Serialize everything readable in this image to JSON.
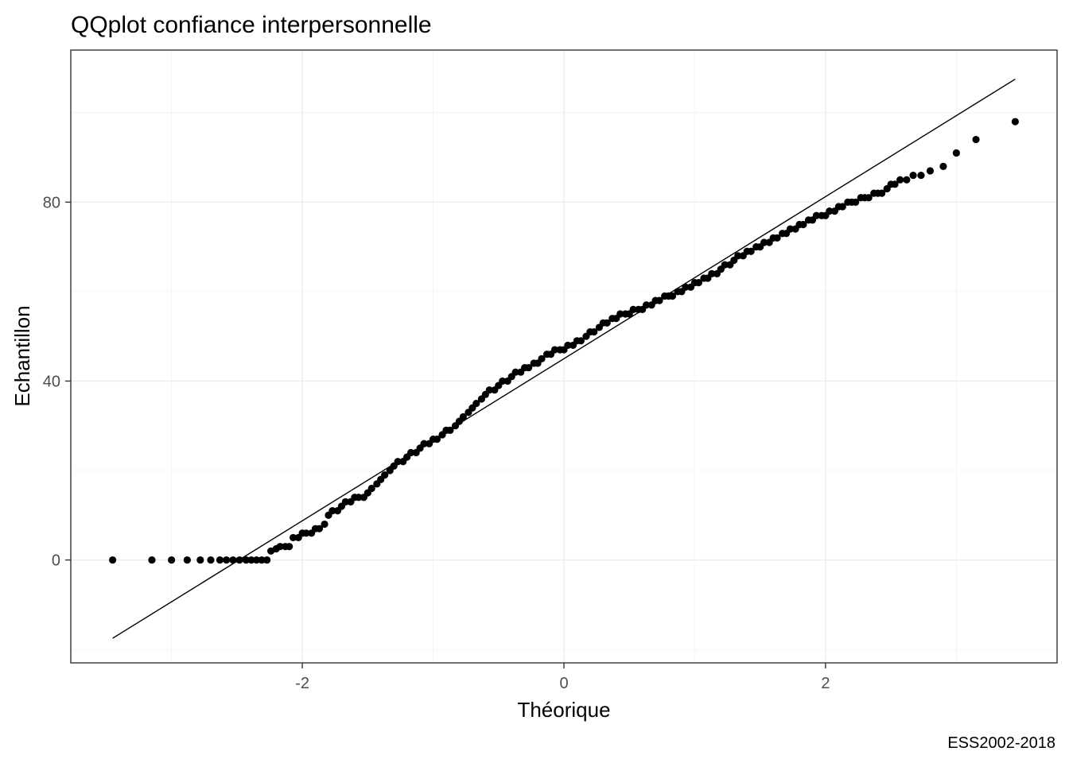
{
  "chart_data": {
    "type": "scatter",
    "title": "QQplot confiance interpersonnelle",
    "xlabel": "Théorique",
    "ylabel": "Echantillon",
    "caption": "ESS2002-2018",
    "xlim": [
      -3.77,
      3.77
    ],
    "ylim": [
      -23,
      114
    ],
    "x_ticks": [
      -2,
      0,
      2
    ],
    "x_tick_labels": [
      "-2",
      "0",
      "2"
    ],
    "y_ticks": [
      0,
      40,
      80
    ],
    "y_tick_labels": [
      "0",
      "40",
      "80"
    ],
    "grid": true,
    "reference_line": {
      "x": [
        -3.45,
        3.45
      ],
      "y": [
        -17.5,
        107.5
      ]
    },
    "series": [
      {
        "points_x": [
          -3.45,
          -3.15,
          -3.0,
          -2.88,
          -2.78,
          -2.7,
          -2.63,
          -2.58,
          -2.53,
          -2.48,
          -2.43,
          -2.39,
          -2.35,
          -2.31,
          -2.27,
          -2.24,
          -2.2,
          -2.17,
          -2.13,
          -2.1,
          -2.07,
          -2.03,
          -2.0,
          -1.97,
          -1.93,
          -1.9,
          -1.87,
          -1.83,
          -1.8,
          -1.77,
          -1.73,
          -1.7,
          -1.67,
          -1.63,
          -1.6,
          -1.57,
          -1.53,
          -1.5,
          -1.47,
          -1.43,
          -1.4,
          -1.37,
          -1.33,
          -1.3,
          -1.27,
          -1.23,
          -1.2,
          -1.17,
          -1.13,
          -1.1,
          -1.07,
          -1.03,
          -1.0,
          -0.97,
          -0.93,
          -0.9,
          -0.87,
          -0.83,
          -0.8,
          -0.77,
          -0.73,
          -0.7,
          -0.67,
          -0.63,
          -0.6,
          -0.57,
          -0.53,
          -0.5,
          -0.47,
          -0.43,
          -0.4,
          -0.37,
          -0.33,
          -0.3,
          -0.27,
          -0.23,
          -0.2,
          -0.17,
          -0.13,
          -0.1,
          -0.07,
          -0.03,
          0.0,
          0.03,
          0.07,
          0.1,
          0.13,
          0.17,
          0.2,
          0.23,
          0.27,
          0.3,
          0.33,
          0.37,
          0.4,
          0.43,
          0.47,
          0.5,
          0.53,
          0.57,
          0.6,
          0.63,
          0.67,
          0.7,
          0.73,
          0.77,
          0.8,
          0.83,
          0.87,
          0.9,
          0.93,
          0.97,
          1.0,
          1.03,
          1.07,
          1.1,
          1.13,
          1.17,
          1.2,
          1.23,
          1.27,
          1.3,
          1.33,
          1.37,
          1.4,
          1.43,
          1.47,
          1.5,
          1.53,
          1.57,
          1.6,
          1.63,
          1.67,
          1.7,
          1.73,
          1.77,
          1.8,
          1.83,
          1.87,
          1.9,
          1.93,
          1.97,
          2.0,
          2.03,
          2.07,
          2.1,
          2.13,
          2.17,
          2.2,
          2.23,
          2.27,
          2.3,
          2.33,
          2.37,
          2.4,
          2.43,
          2.47,
          2.5,
          2.53,
          2.57,
          2.62,
          2.67,
          2.73,
          2.8,
          2.9,
          3.0,
          3.15,
          3.45
        ],
        "points_y": [
          0,
          0,
          0,
          0,
          0,
          0,
          0,
          0,
          0,
          0,
          0,
          0,
          0,
          0,
          0,
          2,
          2.5,
          3,
          3,
          3,
          5,
          5,
          6,
          6,
          6,
          7,
          7,
          8,
          10,
          11,
          11,
          12,
          13,
          13,
          14,
          14,
          14,
          15,
          16,
          17,
          18,
          19,
          20,
          21,
          22,
          22,
          23,
          24,
          24,
          25,
          26,
          26,
          27,
          27,
          28,
          29,
          29,
          30,
          31,
          32,
          33,
          34,
          35,
          36,
          37,
          38,
          38,
          39,
          40,
          40,
          41,
          42,
          42,
          43,
          43,
          44,
          44,
          45,
          46,
          46,
          47,
          47,
          47,
          48,
          48,
          49,
          49,
          50,
          51,
          51,
          52,
          53,
          53,
          54,
          54,
          55,
          55,
          55,
          56,
          56,
          56,
          57,
          57,
          58,
          58,
          59,
          59,
          59,
          60,
          60,
          61,
          61,
          62,
          62,
          63,
          63,
          64,
          64,
          65,
          66,
          66,
          67,
          68,
          68,
          69,
          69,
          70,
          70,
          71,
          71,
          72,
          72,
          73,
          73,
          74,
          74,
          75,
          75,
          76,
          76,
          77,
          77,
          77,
          78,
          78,
          79,
          79,
          80,
          80,
          80,
          81,
          81,
          81,
          82,
          82,
          82,
          83,
          84,
          84,
          85,
          85,
          86,
          86,
          87,
          88,
          91,
          94,
          98
        ]
      }
    ]
  }
}
